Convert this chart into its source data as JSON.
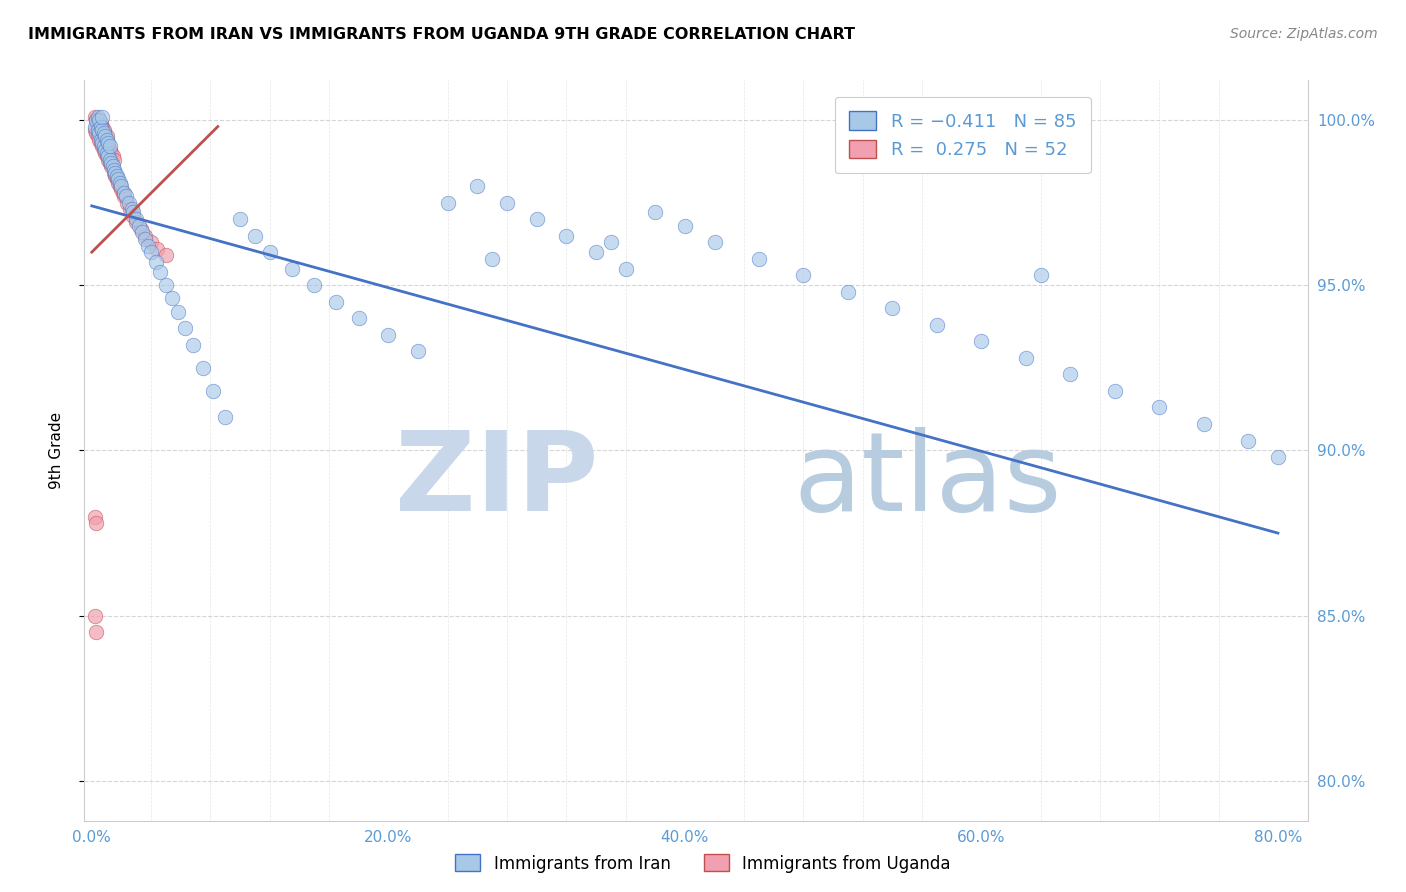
{
  "title": "IMMIGRANTS FROM IRAN VS IMMIGRANTS FROM UGANDA 9TH GRADE CORRELATION CHART",
  "source_text": "Source: ZipAtlas.com",
  "xlabel_ticks": [
    "0.0%",
    "",
    "",
    "",
    "",
    "20.0%",
    "",
    "",
    "",
    "",
    "40.0%",
    "",
    "",
    "",
    "",
    "60.0%",
    "",
    "",
    "",
    "",
    "80.0%"
  ],
  "x_tick_vals": [
    0.0,
    0.04,
    0.08,
    0.12,
    0.16,
    0.2,
    0.24,
    0.28,
    0.32,
    0.36,
    0.4,
    0.44,
    0.48,
    0.52,
    0.56,
    0.6,
    0.64,
    0.68,
    0.72,
    0.76,
    0.8
  ],
  "ylabel_ticks_right": [
    "100.0%",
    "95.0%",
    "90.0%",
    "85.0%",
    "80.0%"
  ],
  "y_tick_vals": [
    1.0,
    0.95,
    0.9,
    0.85,
    0.8
  ],
  "xlim": [
    -0.005,
    0.82
  ],
  "ylim": [
    0.788,
    1.012
  ],
  "ylabel": "9th Grade",
  "iran_R": -0.411,
  "iran_N": 85,
  "uganda_R": 0.275,
  "uganda_N": 52,
  "iran_color": "#A8C8E8",
  "uganda_color": "#F0A0B0",
  "iran_line_color": "#4472C4",
  "uganda_line_color": "#C0504D",
  "watermark_zip_color": "#C8D8EA",
  "watermark_atlas_color": "#B8CCE0",
  "iran_line_x": [
    0.0,
    0.8
  ],
  "iran_line_y": [
    0.974,
    0.875
  ],
  "uganda_line_x": [
    0.0,
    0.085
  ],
  "uganda_line_y": [
    0.96,
    0.998
  ],
  "iran_points_x": [
    0.002,
    0.003,
    0.004,
    0.004,
    0.005,
    0.005,
    0.006,
    0.006,
    0.007,
    0.007,
    0.007,
    0.008,
    0.008,
    0.009,
    0.009,
    0.01,
    0.01,
    0.011,
    0.011,
    0.012,
    0.012,
    0.013,
    0.014,
    0.015,
    0.016,
    0.017,
    0.018,
    0.019,
    0.02,
    0.022,
    0.023,
    0.025,
    0.027,
    0.028,
    0.03,
    0.032,
    0.034,
    0.036,
    0.038,
    0.04,
    0.043,
    0.046,
    0.05,
    0.054,
    0.058,
    0.063,
    0.068,
    0.075,
    0.082,
    0.09,
    0.1,
    0.11,
    0.12,
    0.135,
    0.15,
    0.165,
    0.18,
    0.2,
    0.22,
    0.24,
    0.26,
    0.28,
    0.3,
    0.32,
    0.34,
    0.36,
    0.38,
    0.4,
    0.42,
    0.45,
    0.48,
    0.51,
    0.54,
    0.57,
    0.6,
    0.63,
    0.66,
    0.69,
    0.72,
    0.75,
    0.78,
    0.8,
    0.64,
    0.35,
    0.27
  ],
  "iran_points_y": [
    0.998,
    1.0,
    0.997,
    1.001,
    0.996,
    1.0,
    0.994,
    0.998,
    0.993,
    0.997,
    1.001,
    0.992,
    0.996,
    0.991,
    0.995,
    0.99,
    0.994,
    0.989,
    0.993,
    0.988,
    0.992,
    0.987,
    0.986,
    0.985,
    0.984,
    0.983,
    0.982,
    0.981,
    0.98,
    0.978,
    0.977,
    0.975,
    0.973,
    0.972,
    0.97,
    0.968,
    0.966,
    0.964,
    0.962,
    0.96,
    0.957,
    0.954,
    0.95,
    0.946,
    0.942,
    0.937,
    0.932,
    0.925,
    0.918,
    0.91,
    0.97,
    0.965,
    0.96,
    0.955,
    0.95,
    0.945,
    0.94,
    0.935,
    0.93,
    0.975,
    0.98,
    0.975,
    0.97,
    0.965,
    0.96,
    0.955,
    0.972,
    0.968,
    0.963,
    0.958,
    0.953,
    0.948,
    0.943,
    0.938,
    0.933,
    0.928,
    0.923,
    0.918,
    0.913,
    0.908,
    0.903,
    0.898,
    0.953,
    0.963,
    0.958
  ],
  "uganda_points_x": [
    0.002,
    0.002,
    0.003,
    0.003,
    0.004,
    0.004,
    0.005,
    0.005,
    0.005,
    0.006,
    0.006,
    0.006,
    0.007,
    0.007,
    0.007,
    0.008,
    0.008,
    0.008,
    0.009,
    0.009,
    0.01,
    0.01,
    0.01,
    0.011,
    0.011,
    0.012,
    0.012,
    0.013,
    0.013,
    0.014,
    0.015,
    0.015,
    0.016,
    0.017,
    0.018,
    0.019,
    0.02,
    0.021,
    0.022,
    0.024,
    0.026,
    0.028,
    0.03,
    0.033,
    0.036,
    0.04,
    0.044,
    0.05,
    0.002,
    0.003,
    0.002,
    0.003
  ],
  "uganda_points_y": [
    1.001,
    0.997,
    1.0,
    0.996,
    0.999,
    0.995,
    0.998,
    0.994,
    1.0,
    0.997,
    0.993,
    0.999,
    0.996,
    0.992,
    0.998,
    0.995,
    0.991,
    0.997,
    0.994,
    0.99,
    0.993,
    0.989,
    0.995,
    0.992,
    0.988,
    0.991,
    0.987,
    0.99,
    0.986,
    0.989,
    0.988,
    0.984,
    0.983,
    0.982,
    0.981,
    0.98,
    0.979,
    0.978,
    0.977,
    0.975,
    0.973,
    0.971,
    0.969,
    0.967,
    0.965,
    0.963,
    0.961,
    0.959,
    0.88,
    0.878,
    0.85,
    0.845
  ]
}
